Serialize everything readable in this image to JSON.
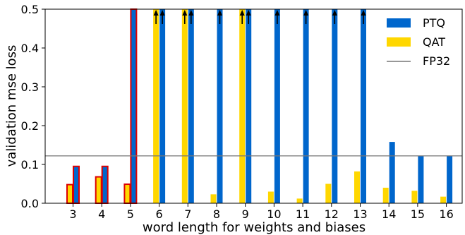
{
  "chart_data": {
    "type": "bar",
    "xlabel": "word length for weights and biases",
    "ylabel": "validation mse loss",
    "ylim": [
      0,
      0.5
    ],
    "yticks": [
      0.0,
      0.1,
      0.2,
      0.3,
      0.4,
      0.5
    ],
    "categories": [
      "3",
      "4",
      "5",
      "6",
      "7",
      "8",
      "9",
      "10",
      "11",
      "12",
      "13",
      "14",
      "15",
      "16"
    ],
    "series": [
      {
        "name": "PTQ",
        "color": "#0066cc",
        "values": [
          0.095,
          0.095,
          0.5,
          0.5,
          0.5,
          0.5,
          0.5,
          0.5,
          0.5,
          0.5,
          0.5,
          0.158,
          0.122,
          0.122
        ]
      },
      {
        "name": "QAT",
        "color": "#ffd700",
        "values": [
          0.048,
          0.068,
          0.049,
          0.5,
          0.5,
          0.023,
          0.5,
          0.03,
          0.012,
          0.05,
          0.082,
          0.04,
          0.032,
          0.017
        ]
      }
    ],
    "reference_line": {
      "name": "FP32",
      "value": 0.122,
      "color": "#777777"
    },
    "highlighted_categories": [
      "3",
      "4",
      "5"
    ],
    "highlight_color": "#dd0000",
    "overflow_arrows": {
      "PTQ": [
        "6",
        "7",
        "9"
      ],
      "QAT": [
        "6",
        "7",
        "9"
      ],
      "QAT_ptq": [
        "8",
        "10",
        "11",
        "12",
        "13"
      ]
    },
    "legend": {
      "placement": "top-right",
      "entries": [
        "PTQ",
        "QAT",
        "FP32"
      ]
    }
  }
}
